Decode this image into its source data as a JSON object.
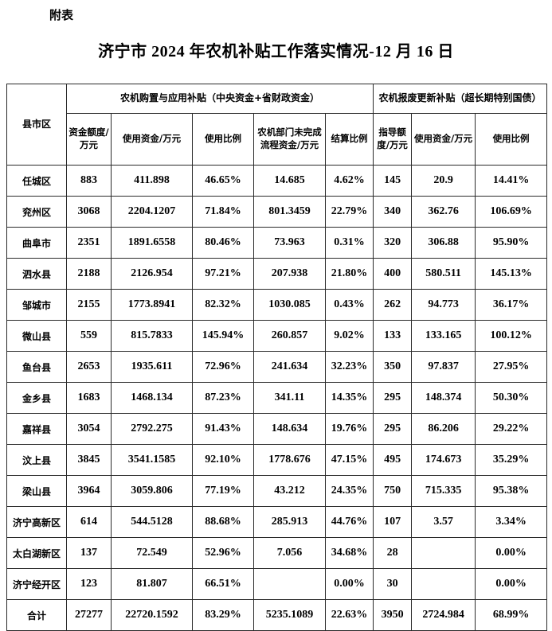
{
  "page": {
    "corner_label": "附表",
    "title": "济宁市 2024 年农机补贴工作落实情况-12 月 16 日"
  },
  "table": {
    "region_header": "县市区",
    "groups": [
      {
        "title": "农机购置与应用补贴（中央资金+省财政资金）",
        "columns": [
          "资金额度/万元",
          "使用资金/万元",
          "使用比例",
          "农机部门未完成流程资金/万元",
          "结算比例"
        ]
      },
      {
        "title": "农机报废更新补贴（超长期特别国债）",
        "columns": [
          "指导额度/万元",
          "使用资金/万元",
          "使用比例"
        ]
      }
    ],
    "rows": [
      {
        "region": "任城区",
        "values": [
          "883",
          "411.898",
          "46.65%",
          "14.685",
          "4.62%",
          "145",
          "20.9",
          "14.41%"
        ]
      },
      {
        "region": "兖州区",
        "values": [
          "3068",
          "2204.1207",
          "71.84%",
          "801.3459",
          "22.79%",
          "340",
          "362.76",
          "106.69%"
        ]
      },
      {
        "region": "曲阜市",
        "values": [
          "2351",
          "1891.6558",
          "80.46%",
          "73.963",
          "0.31%",
          "320",
          "306.88",
          "95.90%"
        ]
      },
      {
        "region": "泗水县",
        "values": [
          "2188",
          "2126.954",
          "97.21%",
          "207.938",
          "21.80%",
          "400",
          "580.511",
          "145.13%"
        ]
      },
      {
        "region": "邹城市",
        "values": [
          "2155",
          "1773.8941",
          "82.32%",
          "1030.085",
          "0.43%",
          "262",
          "94.773",
          "36.17%"
        ]
      },
      {
        "region": "微山县",
        "values": [
          "559",
          "815.7833",
          "145.94%",
          "260.857",
          "9.02%",
          "133",
          "133.165",
          "100.12%"
        ]
      },
      {
        "region": "鱼台县",
        "values": [
          "2653",
          "1935.611",
          "72.96%",
          "241.634",
          "32.23%",
          "350",
          "97.837",
          "27.95%"
        ]
      },
      {
        "region": "金乡县",
        "values": [
          "1683",
          "1468.134",
          "87.23%",
          "341.11",
          "14.35%",
          "295",
          "148.374",
          "50.30%"
        ]
      },
      {
        "region": "嘉祥县",
        "values": [
          "3054",
          "2792.275",
          "91.43%",
          "148.634",
          "19.76%",
          "295",
          "86.206",
          "29.22%"
        ]
      },
      {
        "region": "汶上县",
        "values": [
          "3845",
          "3541.1585",
          "92.10%",
          "1778.676",
          "47.15%",
          "495",
          "174.673",
          "35.29%"
        ]
      },
      {
        "region": "梁山县",
        "values": [
          "3964",
          "3059.806",
          "77.19%",
          "43.212",
          "24.35%",
          "750",
          "715.335",
          "95.38%"
        ]
      },
      {
        "region": "济宁高新区",
        "values": [
          "614",
          "544.5128",
          "88.68%",
          "285.913",
          "44.76%",
          "107",
          "3.57",
          "3.34%"
        ]
      },
      {
        "region": "太白湖新区",
        "values": [
          "137",
          "72.549",
          "52.96%",
          "7.056",
          "34.68%",
          "28",
          "",
          "0.00%"
        ]
      },
      {
        "region": "济宁经开区",
        "values": [
          "123",
          "81.807",
          "66.51%",
          "",
          "0.00%",
          "30",
          "",
          "0.00%"
        ]
      },
      {
        "region": "合计",
        "values": [
          "27277",
          "22720.1592",
          "83.29%",
          "5235.1089",
          "22.63%",
          "3950",
          "2724.984",
          "68.99%"
        ]
      }
    ]
  }
}
